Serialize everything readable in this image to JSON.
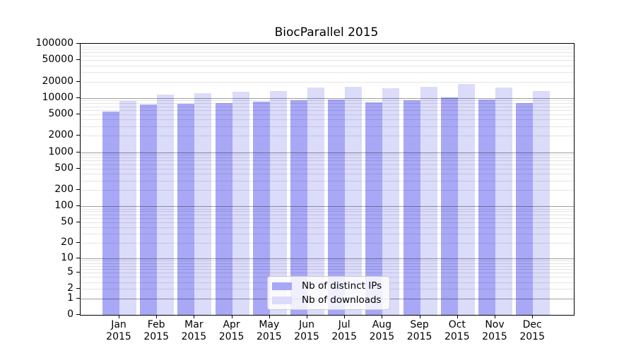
{
  "title": "BiocParallel 2015",
  "colors": {
    "distinct_ips_bar": "#a8a8f7",
    "downloads_bar": "#dbdbfa",
    "major_grid": "rgba(0,0,0,0.38)",
    "minor_grid": "rgba(0,0,0,0.10)",
    "axis_frame": "#000000",
    "background": "#ffffff",
    "legend_border": "#cccccc"
  },
  "legend": {
    "items": [
      {
        "label": "Nb of distinct IPs",
        "color": "#a8a8f7"
      },
      {
        "label": "Nb of downloads",
        "color": "#dbdbfa"
      }
    ]
  },
  "axes": {
    "x_months": [
      "Jan",
      "Feb",
      "Mar",
      "Apr",
      "May",
      "Jun",
      "Jul",
      "Aug",
      "Sep",
      "Oct",
      "Nov",
      "Dec"
    ],
    "x_year": "2015",
    "y_tick_labels": [
      "0",
      "1",
      "2",
      "5",
      "10",
      "20",
      "50",
      "100",
      "200",
      "500",
      "1000",
      "2000",
      "5000",
      "10000",
      "20000",
      "50000",
      "100000"
    ]
  },
  "chart_data": {
    "type": "bar",
    "title": "BiocParallel 2015",
    "categories": [
      "Jan 2015",
      "Feb 2015",
      "Mar 2015",
      "Apr 2015",
      "May 2015",
      "Jun 2015",
      "Jul 2015",
      "Aug 2015",
      "Sep 2015",
      "Oct 2015",
      "Nov 2015",
      "Dec 2015"
    ],
    "series": [
      {
        "name": "Nb of distinct IPs",
        "color": "#a8a8f7",
        "values": [
          5650,
          7540,
          7800,
          8100,
          8500,
          9000,
          9300,
          8350,
          9000,
          10300,
          9300,
          8100
        ]
      },
      {
        "name": "Nb of downloads",
        "color": "#dbdbfa",
        "values": [
          8800,
          11600,
          12300,
          13100,
          13500,
          15700,
          16000,
          15000,
          16000,
          17900,
          15700,
          13300
        ]
      }
    ],
    "xlabel": "",
    "ylabel": "",
    "yscale": "log1p",
    "ylim": [
      0,
      100000
    ],
    "yticks": [
      0,
      1,
      2,
      5,
      10,
      20,
      50,
      100,
      200,
      500,
      1000,
      2000,
      5000,
      10000,
      20000,
      50000,
      100000
    ],
    "major_gridlines_at": [
      1,
      10,
      100,
      1000,
      10000
    ],
    "grid": true,
    "legend_position": "lower center"
  }
}
